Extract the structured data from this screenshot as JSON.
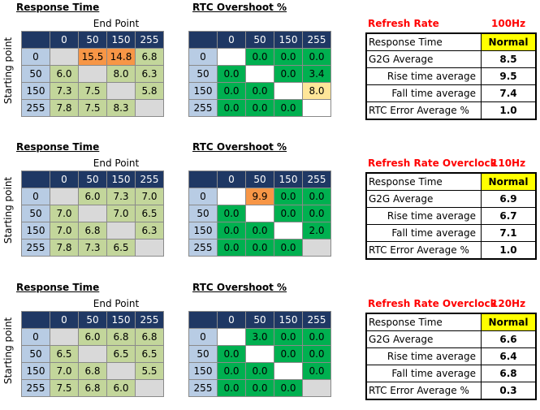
{
  "chart_data": [
    {
      "type": "table",
      "response_title": "Response Time",
      "end_point_label": "End Point",
      "starting_point_label": "Starting point",
      "rtc_title": "RTC Overshoot %",
      "refresh_label": "Refresh Rate",
      "refresh_hz": "100Hz",
      "columns": [
        "",
        "0",
        "50",
        "150",
        "255"
      ],
      "rows": [
        "0",
        "50",
        "150",
        "255"
      ],
      "response": [
        [
          "",
          "15.5",
          "14.8",
          "6.8"
        ],
        [
          "6.0",
          "",
          "8.0",
          "6.3"
        ],
        [
          "7.3",
          "7.5",
          "",
          "5.8"
        ],
        [
          "7.8",
          "7.5",
          "8.3",
          ""
        ]
      ],
      "response_colors": [
        [
          "#d9d9d9",
          "#f79646",
          "#f79646",
          "#c3d69b"
        ],
        [
          "#c3d69b",
          "#d9d9d9",
          "#c3d69b",
          "#c3d69b"
        ],
        [
          "#c3d69b",
          "#c3d69b",
          "#d9d9d9",
          "#c3d69b"
        ],
        [
          "#c3d69b",
          "#c3d69b",
          "#c3d69b",
          "#d9d9d9"
        ]
      ],
      "rtc": [
        [
          "",
          "0.0",
          "0.0",
          "0.0"
        ],
        [
          "0.0",
          "",
          "0.0",
          "3.4"
        ],
        [
          "0.0",
          "0.0",
          "",
          "8.0"
        ],
        [
          "0.0",
          "0.0",
          "0.0",
          ""
        ]
      ],
      "rtc_colors": [
        [
          "#ffffff",
          "#00b050",
          "#00b050",
          "#00b050"
        ],
        [
          "#00b050",
          "#ffffff",
          "#00b050",
          "#00b050"
        ],
        [
          "#00b050",
          "#00b050",
          "#ffffff",
          "#ffe699"
        ],
        [
          "#00b050",
          "#00b050",
          "#00b050",
          "#ffffff"
        ]
      ],
      "stats": {
        "response_time_label": "Response Time",
        "mode": "Normal",
        "g2g_label": "G2G Average",
        "g2g": "8.5",
        "rise_label": "Rise time average",
        "rise": "9.5",
        "fall_label": "Fall time average",
        "fall": "7.4",
        "rtc_err_label": "RTC Error Average %",
        "rtc_err": "1.0"
      }
    },
    {
      "type": "table",
      "response_title": "Response Time",
      "end_point_label": "End Point",
      "starting_point_label": "Starting point",
      "rtc_title": "RTC Overshoot %",
      "refresh_label": "Refresh Rate Overclock",
      "refresh_hz": "110Hz",
      "columns": [
        "",
        "0",
        "50",
        "150",
        "255"
      ],
      "rows": [
        "0",
        "50",
        "150",
        "255"
      ],
      "response": [
        [
          "",
          "6.0",
          "7.3",
          "7.0"
        ],
        [
          "7.0",
          "",
          "7.0",
          "6.5"
        ],
        [
          "7.0",
          "6.8",
          "",
          "6.3"
        ],
        [
          "7.8",
          "7.3",
          "6.5",
          ""
        ]
      ],
      "response_colors": [
        [
          "#d9d9d9",
          "#c3d69b",
          "#c3d69b",
          "#c3d69b"
        ],
        [
          "#c3d69b",
          "#d9d9d9",
          "#c3d69b",
          "#c3d69b"
        ],
        [
          "#c3d69b",
          "#c3d69b",
          "#d9d9d9",
          "#c3d69b"
        ],
        [
          "#c3d69b",
          "#c3d69b",
          "#c3d69b",
          "#d9d9d9"
        ]
      ],
      "rtc": [
        [
          "",
          "9.9",
          "0.0",
          "0.0"
        ],
        [
          "0.0",
          "",
          "0.0",
          "0.0"
        ],
        [
          "0.0",
          "0.0",
          "",
          "2.0"
        ],
        [
          "0.0",
          "0.0",
          "0.0",
          ""
        ]
      ],
      "rtc_colors": [
        [
          "#ffffff",
          "#f79646",
          "#00b050",
          "#00b050"
        ],
        [
          "#00b050",
          "#ffffff",
          "#00b050",
          "#00b050"
        ],
        [
          "#00b050",
          "#00b050",
          "#ffffff",
          "#00b050"
        ],
        [
          "#00b050",
          "#00b050",
          "#00b050",
          "#d9d9d9"
        ]
      ],
      "stats": {
        "response_time_label": "Response Time",
        "mode": "Normal",
        "g2g_label": "G2G Average",
        "g2g": "6.9",
        "rise_label": "Rise time average",
        "rise": "6.7",
        "fall_label": "Fall time average",
        "fall": "7.1",
        "rtc_err_label": "RTC Error Average %",
        "rtc_err": "1.0"
      }
    },
    {
      "type": "table",
      "response_title": "Response Time",
      "end_point_label": "End Point",
      "starting_point_label": "Starting point",
      "rtc_title": "RTC Overshoot %",
      "refresh_label": "Refresh Rate Overclock",
      "refresh_hz": "120Hz",
      "columns": [
        "",
        "0",
        "50",
        "150",
        "255"
      ],
      "rows": [
        "0",
        "50",
        "150",
        "255"
      ],
      "response": [
        [
          "",
          "6.0",
          "6.8",
          "6.8"
        ],
        [
          "6.5",
          "",
          "6.5",
          "6.5"
        ],
        [
          "7.0",
          "6.8",
          "",
          "5.5"
        ],
        [
          "7.5",
          "6.8",
          "6.0",
          ""
        ]
      ],
      "response_colors": [
        [
          "#d9d9d9",
          "#c3d69b",
          "#c3d69b",
          "#c3d69b"
        ],
        [
          "#c3d69b",
          "#d9d9d9",
          "#c3d69b",
          "#c3d69b"
        ],
        [
          "#c3d69b",
          "#c3d69b",
          "#d9d9d9",
          "#c3d69b"
        ],
        [
          "#c3d69b",
          "#c3d69b",
          "#c3d69b",
          "#d9d9d9"
        ]
      ],
      "rtc": [
        [
          "",
          "3.0",
          "0.0",
          "0.0"
        ],
        [
          "0.0",
          "",
          "0.0",
          "0.0"
        ],
        [
          "0.0",
          "0.0",
          "",
          "0.0"
        ],
        [
          "0.0",
          "0.0",
          "0.0",
          ""
        ]
      ],
      "rtc_colors": [
        [
          "#ffffff",
          "#00b050",
          "#00b050",
          "#00b050"
        ],
        [
          "#00b050",
          "#ffffff",
          "#00b050",
          "#00b050"
        ],
        [
          "#00b050",
          "#00b050",
          "#ffffff",
          "#00b050"
        ],
        [
          "#00b050",
          "#00b050",
          "#00b050",
          "#d9d9d9"
        ]
      ],
      "stats": {
        "response_time_label": "Response Time",
        "mode": "Normal",
        "g2g_label": "G2G Average",
        "g2g": "6.6",
        "rise_label": "Rise time average",
        "rise": "6.4",
        "fall_label": "Fall time average",
        "fall": "6.8",
        "rtc_err_label": "RTC Error Average %",
        "rtc_err": "0.3"
      }
    }
  ]
}
